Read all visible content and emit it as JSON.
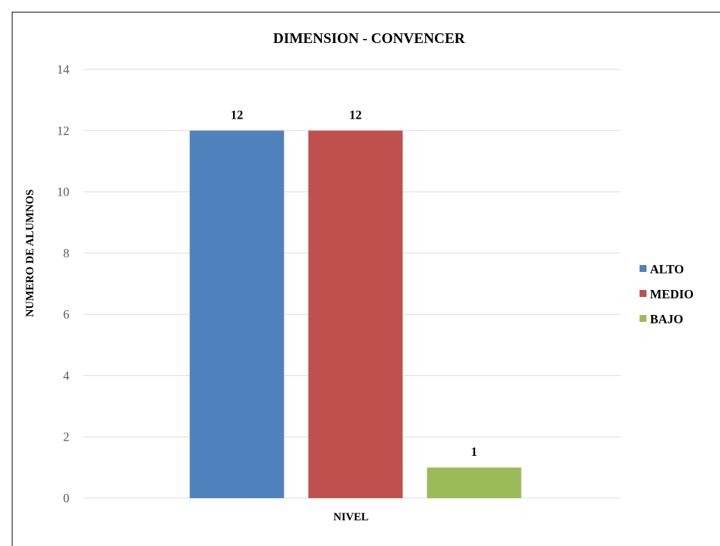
{
  "chart_data": {
    "type": "bar",
    "title": "DIMENSION - CONVENCER",
    "xlabel": "NIVEL",
    "ylabel": "NUMERO DE ALUMNOS",
    "ylim": [
      0,
      14
    ],
    "y_ticks": [
      "0",
      "2",
      "4",
      "6",
      "8",
      "10",
      "12",
      "14"
    ],
    "grid": true,
    "legend_position": "right",
    "series": [
      {
        "name": "ALTO",
        "values": [
          12
        ],
        "color": "#4F81BD"
      },
      {
        "name": "MEDIO",
        "values": [
          12
        ],
        "color": "#C0504D"
      },
      {
        "name": "BAJO",
        "values": [
          1
        ],
        "color": "#9BBB59"
      }
    ]
  }
}
